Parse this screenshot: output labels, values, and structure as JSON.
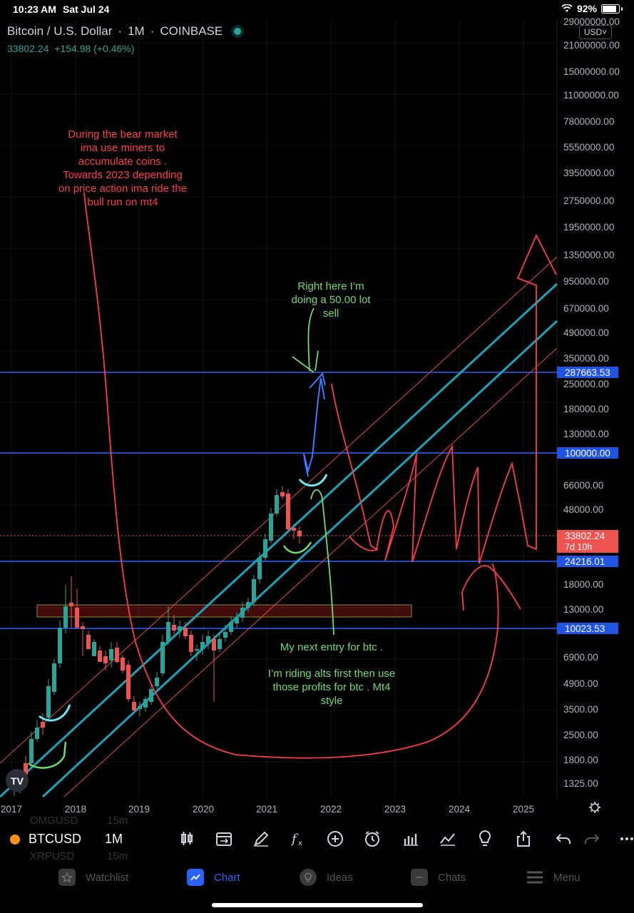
{
  "status_bar": {
    "time": "10:23 AM",
    "date": "Sat Jul 24",
    "battery": "92%"
  },
  "header": {
    "symbol_name": "Bitcoin / U.S. Dollar",
    "interval": "1M",
    "exchange": "COINBASE",
    "last_price": "33802.24",
    "change": "+154.98 (+0.46%)"
  },
  "currency": "USD˅",
  "price_axis": {
    "labels": [
      "29000000.00",
      "21000000.00",
      "15000000.00",
      "11000000.00",
      "7800000.00",
      "5550000.00",
      "3950000.00",
      "2750000.00",
      "1950000.00",
      "1350000.00",
      "950000.00",
      "670000.00",
      "490000.00",
      "350000.00",
      "250000.00",
      "180000.00",
      "130000.00",
      "66000.00",
      "48000.00",
      "18000.00",
      "13000.00",
      "6900.00",
      "4900.00",
      "3500.00",
      "2500.00",
      "1800.00",
      "1325.00"
    ],
    "level_labels": [
      "287663.53",
      "100000.00",
      "24216.01",
      "10023.53"
    ],
    "current_price_label": "33802.24",
    "countdown": "7d 10h"
  },
  "time_axis": [
    "2017",
    "2018",
    "2019",
    "2020",
    "2021",
    "2022",
    "2023",
    "2024",
    "2025"
  ],
  "annotations": {
    "red_note": [
      "During the bear market",
      "ima use miners to",
      "accumulate coins .",
      "Towards 2023 depending",
      "on price action ima ride the",
      "bull run on mt4"
    ],
    "green_sell_note": [
      "Right here I’m",
      "doing a 50.00 lot",
      "sell"
    ],
    "green_entry_note": "My next entry for btc .",
    "green_alts_note": [
      "I’m riding alts first then use",
      "those profits for btc . Mt4",
      "style"
    ]
  },
  "colors": {
    "up": "#26a69a",
    "down": "#ef5350",
    "accent": "#2962ff",
    "level_line": "#2962ff",
    "channel": "#1aa3b8",
    "red_draw": "#ff3b4a",
    "green_draw": "#6fdc6f",
    "cyan_draw": "#6fe6f2",
    "blue_draw": "#3a7bff"
  },
  "toolbar": {
    "symbol": "BTCUSD",
    "interval": "1M",
    "ghost_rows": [
      "OMGUSD",
      "15m",
      "XRPUSD",
      "15m"
    ],
    "icons": [
      "candles-icon",
      "calendar-icon",
      "pencil-icon",
      "function-icon",
      "add-icon",
      "alarm-icon",
      "bars-icon",
      "indicators-icon",
      "lightbulb-icon",
      "share-icon",
      "undo-icon",
      "redo-icon",
      "more-icon"
    ]
  },
  "bottom_nav": [
    {
      "label": "Watchlist",
      "icon": "star-icon",
      "active": false
    },
    {
      "label": "Chart",
      "icon": "chart-icon",
      "active": true
    },
    {
      "label": "Ideas",
      "icon": "lightbulb-icon",
      "active": false
    },
    {
      "label": "Chats",
      "icon": "chat-icon",
      "active": false
    },
    {
      "label": "Menu",
      "icon": "menu-icon",
      "active": false
    }
  ]
}
